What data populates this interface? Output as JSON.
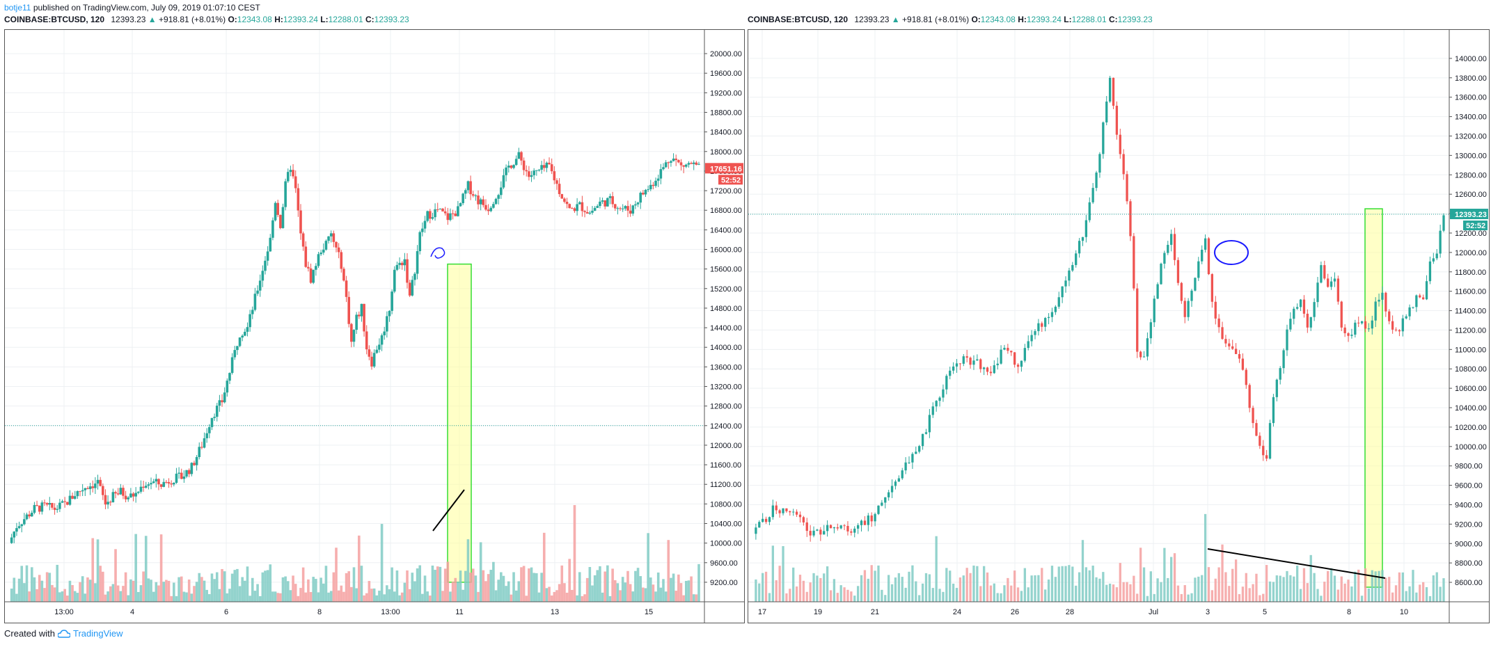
{
  "header": {
    "user": "botje11",
    "published_text": "published on TradingView.com, July 09, 2019 01:07:10 CEST"
  },
  "footer": {
    "created_with": "Created with",
    "brand": "TradingView"
  },
  "colors": {
    "up": "#26a69a",
    "down": "#ef5350",
    "vol_up": "#80cbc4",
    "vol_down": "#f5a0a0",
    "highlight_fill": "#ffff99",
    "highlight_stroke": "#33dd33",
    "annotation_blue": "#1a1aff"
  },
  "legend": {
    "symbol": "COINBASE:BTCUSD, 120",
    "last": "12393.23",
    "change": "+918.81 (+8.01%)",
    "o_label": "O:",
    "o": "12343.08",
    "h_label": "H:",
    "h": "12393.24",
    "l_label": "L:",
    "l": "12288.01",
    "c_label": "C:",
    "c": "12393.23"
  },
  "chart_data": [
    {
      "type": "candlestick",
      "y_ticks": [
        "20000.00",
        "19600.00",
        "19200.00",
        "18800.00",
        "18400.00",
        "18000.00",
        "17600.00",
        "17200.00",
        "16800.00",
        "16400.00",
        "16000.00",
        "15600.00",
        "15200.00",
        "14800.00",
        "14400.00",
        "14000.00",
        "13600.00",
        "13200.00",
        "12800.00",
        "12400.00",
        "12000.00",
        "11600.00",
        "11200.00",
        "10800.00",
        "10400.00",
        "10000.00",
        "9600.00",
        "9200.00"
      ],
      "ylim": [
        9000,
        20200
      ],
      "x_ticks": [
        "13:00",
        "4",
        "6",
        "8",
        "13:00",
        "11",
        "13",
        "15"
      ],
      "price_label": "17651.16",
      "countdown_label": "52:52",
      "last_price": 17651.16,
      "dotted_level": 12400,
      "highlight": {
        "from": 15700,
        "to": 9200
      },
      "close_path": [
        [
          0,
          10000
        ],
        [
          3,
          10350
        ],
        [
          6,
          10500
        ],
        [
          10,
          10700
        ],
        [
          14,
          10750
        ],
        [
          18,
          10700
        ],
        [
          22,
          10800
        ],
        [
          26,
          11000
        ],
        [
          30,
          11150
        ],
        [
          33,
          11200
        ],
        [
          35,
          11250
        ],
        [
          38,
          10800
        ],
        [
          41,
          10950
        ],
        [
          44,
          11050
        ],
        [
          47,
          10950
        ],
        [
          50,
          11000
        ],
        [
          53,
          11200
        ],
        [
          56,
          11250
        ],
        [
          60,
          11200
        ],
        [
          64,
          11300
        ],
        [
          68,
          11350
        ],
        [
          72,
          11550
        ],
        [
          76,
          12000
        ],
        [
          80,
          12600
        ],
        [
          84,
          12900
        ],
        [
          88,
          13700
        ],
        [
          91,
          14300
        ],
        [
          94,
          14400
        ],
        [
          97,
          15000
        ],
        [
          100,
          15600
        ],
        [
          103,
          16200
        ],
        [
          105,
          17000
        ],
        [
          107,
          16500
        ],
        [
          109,
          17300
        ],
        [
          111,
          17700
        ],
        [
          113,
          17200
        ],
        [
          115,
          16300
        ],
        [
          117,
          15700
        ],
        [
          119,
          15400
        ],
        [
          121,
          15700
        ],
        [
          123,
          16000
        ],
        [
          125,
          16100
        ],
        [
          127,
          16300
        ],
        [
          129,
          16000
        ],
        [
          131,
          15700
        ],
        [
          133,
          15000
        ],
        [
          135,
          14100
        ],
        [
          137,
          14600
        ],
        [
          139,
          14800
        ],
        [
          141,
          14000
        ],
        [
          143,
          13700
        ],
        [
          145,
          14000
        ],
        [
          147,
          14200
        ],
        [
          150,
          14800
        ],
        [
          152,
          15600
        ],
        [
          154,
          15700
        ],
        [
          156,
          15800
        ],
        [
          158,
          15000
        ],
        [
          160,
          15600
        ],
        [
          162,
          16300
        ],
        [
          165,
          16700
        ],
        [
          169,
          16800
        ],
        [
          173,
          16650
        ],
        [
          177,
          16800
        ],
        [
          181,
          17300
        ],
        [
          185,
          17000
        ],
        [
          189,
          16850
        ],
        [
          193,
          17200
        ],
        [
          197,
          17700
        ],
        [
          201,
          17900
        ],
        [
          205,
          17500
        ],
        [
          209,
          17600
        ],
        [
          213,
          17700
        ],
        [
          217,
          17200
        ],
        [
          221,
          16800
        ],
        [
          225,
          16900
        ],
        [
          229,
          16750
        ],
        [
          233,
          16950
        ],
        [
          237,
          17000
        ],
        [
          241,
          16850
        ],
        [
          245,
          16800
        ],
        [
          249,
          17100
        ],
        [
          253,
          17300
        ],
        [
          257,
          17600
        ],
        [
          261,
          17900
        ],
        [
          265,
          17700
        ],
        [
          269,
          17750
        ],
        [
          272,
          17650
        ]
      ]
    },
    {
      "type": "candlestick",
      "y_ticks": [
        "14000.00",
        "13800.00",
        "13600.00",
        "13400.00",
        "13200.00",
        "13000.00",
        "12800.00",
        "12600.00",
        "12400.00",
        "12200.00",
        "12000.00",
        "11800.00",
        "11600.00",
        "11400.00",
        "11200.00",
        "11000.00",
        "10800.00",
        "10600.00",
        "10400.00",
        "10200.00",
        "10000.00",
        "9800.00",
        "9600.00",
        "9400.00",
        "9200.00",
        "9000.00",
        "8800.00",
        "8600.00"
      ],
      "ylim": [
        8500,
        14150
      ],
      "x_ticks": [
        "17",
        "19",
        "21",
        "24",
        "26",
        "28",
        "Jul",
        "3",
        "5",
        "8",
        "10"
      ],
      "price_label": "12393.23",
      "countdown_label": "52:52",
      "last_price": 12393.23,
      "dotted_level": 12393.23,
      "highlight": {
        "from": 12450,
        "to": 8550
      },
      "close_path": [
        [
          0,
          9100
        ],
        [
          6,
          9350
        ],
        [
          12,
          9300
        ],
        [
          18,
          9100
        ],
        [
          24,
          9200
        ],
        [
          30,
          9150
        ],
        [
          36,
          9300
        ],
        [
          42,
          9600
        ],
        [
          46,
          9850
        ],
        [
          50,
          10100
        ],
        [
          54,
          10450
        ],
        [
          58,
          10800
        ],
        [
          62,
          10900
        ],
        [
          66,
          10850
        ],
        [
          70,
          10800
        ],
        [
          74,
          11000
        ],
        [
          78,
          10850
        ],
        [
          82,
          11150
        ],
        [
          86,
          11300
        ],
        [
          90,
          11500
        ],
        [
          94,
          11900
        ],
        [
          98,
          12300
        ],
        [
          101,
          12800
        ],
        [
          103,
          13300
        ],
        [
          105,
          13850
        ],
        [
          107,
          13200
        ],
        [
          109,
          12800
        ],
        [
          111,
          12200
        ],
        [
          113,
          11000
        ],
        [
          115,
          10900
        ],
        [
          117,
          11300
        ],
        [
          119,
          11700
        ],
        [
          121,
          12000
        ],
        [
          123,
          12200
        ],
        [
          125,
          11700
        ],
        [
          127,
          11300
        ],
        [
          129,
          11650
        ],
        [
          131,
          11900
        ],
        [
          133,
          12100
        ],
        [
          135,
          11500
        ],
        [
          137,
          11200
        ],
        [
          139,
          11100
        ],
        [
          141,
          11000
        ],
        [
          143,
          10900
        ],
        [
          145,
          10600
        ],
        [
          147,
          10200
        ],
        [
          149,
          10000
        ],
        [
          151,
          9900
        ],
        [
          153,
          10500
        ],
        [
          155,
          10800
        ],
        [
          157,
          11200
        ],
        [
          159,
          11400
        ],
        [
          161,
          11500
        ],
        [
          163,
          11200
        ],
        [
          165,
          11500
        ],
        [
          167,
          11900
        ],
        [
          169,
          11650
        ],
        [
          171,
          11700
        ],
        [
          173,
          11200
        ],
        [
          175,
          11100
        ],
        [
          177,
          11250
        ],
        [
          179,
          11300
        ],
        [
          181,
          11200
        ],
        [
          183,
          11450
        ],
        [
          185,
          11550
        ],
        [
          187,
          11300
        ],
        [
          189,
          11150
        ],
        [
          191,
          11300
        ],
        [
          193,
          11400
        ],
        [
          195,
          11550
        ],
        [
          197,
          11500
        ],
        [
          199,
          11900
        ],
        [
          201,
          12000
        ],
        [
          203,
          12393
        ]
      ]
    }
  ]
}
